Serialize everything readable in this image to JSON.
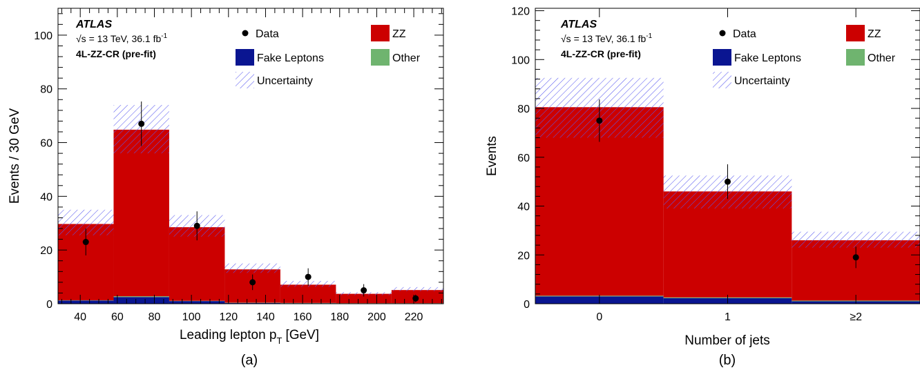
{
  "colors": {
    "zz": "#cc0000",
    "fake": "#0a1591",
    "other": "#6fb46f",
    "uncertainty": "#5a5af0",
    "data": "#000000"
  },
  "chart_data": [
    {
      "type": "bar",
      "stacked": true,
      "panel_label": "(a)",
      "atlas_label": "ATLAS",
      "energy_label": "√s = 13 TeV, 36.1 fb",
      "energy_sup": "-1",
      "region_label": "4L-ZZ-CR (pre-fit)",
      "xlabel": "Leading lepton p",
      "xlabel_sub": "T",
      "xlabel_unit": "[GeV]",
      "ylabel": "Events / 30 GeV",
      "xlim": [
        28,
        236
      ],
      "ylim": [
        0,
        110
      ],
      "xticks": [
        40,
        60,
        80,
        100,
        120,
        140,
        160,
        180,
        200,
        220
      ],
      "yticks": [
        0,
        20,
        40,
        60,
        80,
        100
      ],
      "bin_edges": [
        28,
        58,
        88,
        118,
        148,
        178,
        208,
        236
      ],
      "series": [
        {
          "name": "Fake Leptons",
          "values": [
            1.2,
            2.5,
            1.0,
            0.3,
            0.2,
            0.1,
            0.1
          ]
        },
        {
          "name": "Other",
          "values": [
            0.1,
            0.3,
            0.1,
            0.1,
            0.1,
            0.1,
            0.1
          ]
        },
        {
          "name": "ZZ",
          "values": [
            28.4,
            62.0,
            27.4,
            12.4,
            6.8,
            3.5,
            4.9
          ]
        }
      ],
      "uncertainty_band": {
        "low": [
          25.5,
          56,
          25,
          11.5,
          6.3,
          3.2,
          4.7
        ],
        "high": [
          35,
          74,
          33,
          15,
          8.5,
          4.3,
          6.2
        ]
      },
      "data_points": {
        "x": [
          43,
          73,
          103,
          133,
          163,
          193,
          221
        ],
        "y": [
          23,
          67,
          29,
          8,
          10,
          5,
          2
        ],
        "err": [
          5.0,
          8.3,
          5.4,
          2.9,
          3.2,
          2.3,
          1.4
        ]
      },
      "legend": [
        {
          "label": "Data",
          "kind": "marker"
        },
        {
          "label": "ZZ",
          "kind": "fill",
          "color": "#cc0000"
        },
        {
          "label": "Fake Leptons",
          "kind": "fill",
          "color": "#0a1591"
        },
        {
          "label": "Other",
          "kind": "fill",
          "color": "#6fb46f"
        },
        {
          "label": "Uncertainty",
          "kind": "hatch"
        }
      ],
      "legend_position": "top-right"
    },
    {
      "type": "bar",
      "stacked": true,
      "panel_label": "(b)",
      "atlas_label": "ATLAS",
      "energy_label": "√s = 13 TeV, 36.1 fb",
      "energy_sup": "-1",
      "region_label": "4L-ZZ-CR (pre-fit)",
      "xlabel": "Number of jets",
      "xlabel_sub": "",
      "xlabel_unit": "",
      "ylabel": "Events",
      "xlim": [
        0,
        3
      ],
      "ylim": [
        0,
        121
      ],
      "categories": [
        "0",
        "1",
        "≥2"
      ],
      "yticks": [
        0,
        20,
        40,
        60,
        80,
        100,
        120
      ],
      "series": [
        {
          "name": "Fake Leptons",
          "values": [
            3.0,
            2.3,
            1.0
          ]
        },
        {
          "name": "Other",
          "values": [
            0.3,
            0.3,
            0.3
          ]
        },
        {
          "name": "ZZ",
          "values": [
            77.2,
            43.4,
            24.7
          ]
        }
      ],
      "uncertainty_band": {
        "low": [
          68,
          39,
          23
        ],
        "high": [
          92.5,
          52.5,
          29.5
        ]
      },
      "data_points": {
        "y": [
          75,
          50,
          19
        ],
        "err": [
          8.7,
          7.1,
          4.4
        ]
      },
      "legend": [
        {
          "label": "Data",
          "kind": "marker"
        },
        {
          "label": "ZZ",
          "kind": "fill",
          "color": "#cc0000"
        },
        {
          "label": "Fake Leptons",
          "kind": "fill",
          "color": "#0a1591"
        },
        {
          "label": "Other",
          "kind": "fill",
          "color": "#6fb46f"
        },
        {
          "label": "Uncertainty",
          "kind": "hatch"
        }
      ],
      "legend_position": "top-right"
    }
  ]
}
